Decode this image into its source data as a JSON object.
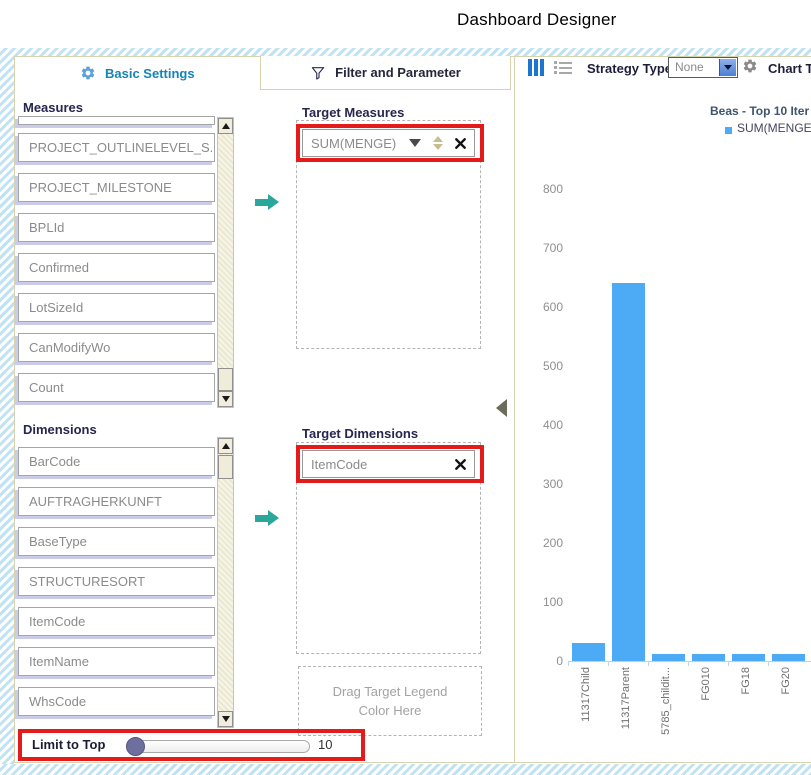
{
  "page_title": "Dashboard Designer",
  "tabs": {
    "basic_settings": "Basic Settings",
    "filter_and_parameter": "Filter and Parameter"
  },
  "left_panel": {
    "measures": {
      "label": "Measures",
      "items": [
        "PROJECT_OUTLINELEVEL_S...",
        "PROJECT_MILESTONE",
        "BPLId",
        "Confirmed",
        "LotSizeId",
        "CanModifyWo",
        "Count"
      ]
    },
    "dimensions": {
      "label": "Dimensions",
      "items": [
        "BarCode",
        "AUFTRAGHERKUNFT",
        "BaseType",
        "STRUCTURESORT",
        "ItemCode",
        "ItemName",
        "WhsCode"
      ]
    },
    "limit_to_top": {
      "label": "Limit to Top",
      "value": "10"
    }
  },
  "target_panel": {
    "target_measures": {
      "label": "Target Measures",
      "item": "SUM(MENGE)"
    },
    "target_dimensions": {
      "label": "Target Dimensions",
      "item": "ItemCode"
    },
    "legend_drop_hint": "Drag Target Legend Color Here"
  },
  "chart_panel": {
    "strategy_type_label": "Strategy Type",
    "strategy_type_value": "None",
    "chart_type_label": "Chart T"
  },
  "chart_data": {
    "type": "bar",
    "title": "Beas - Top 10 Iter",
    "legend": [
      {
        "label": "SUM(MENGE",
        "color": "#4dabf5"
      }
    ],
    "legend_position": "top-right",
    "categories": [
      "11317Child",
      "11317Parent",
      "5785_childit...",
      "FG010",
      "FG18",
      "FG20"
    ],
    "values": [
      30,
      640,
      12,
      12,
      12,
      12
    ],
    "ylim": [
      0,
      800
    ],
    "yticks": [
      0,
      100,
      200,
      300,
      400,
      500,
      600,
      700,
      800
    ],
    "grid": false,
    "bar_color": "#4dabf5"
  },
  "colors": {
    "accent_blue": "#1583b5",
    "annotation_red": "#e31b1b",
    "teal_arrow": "#2aa79b",
    "bar_blue": "#4dabf5"
  }
}
